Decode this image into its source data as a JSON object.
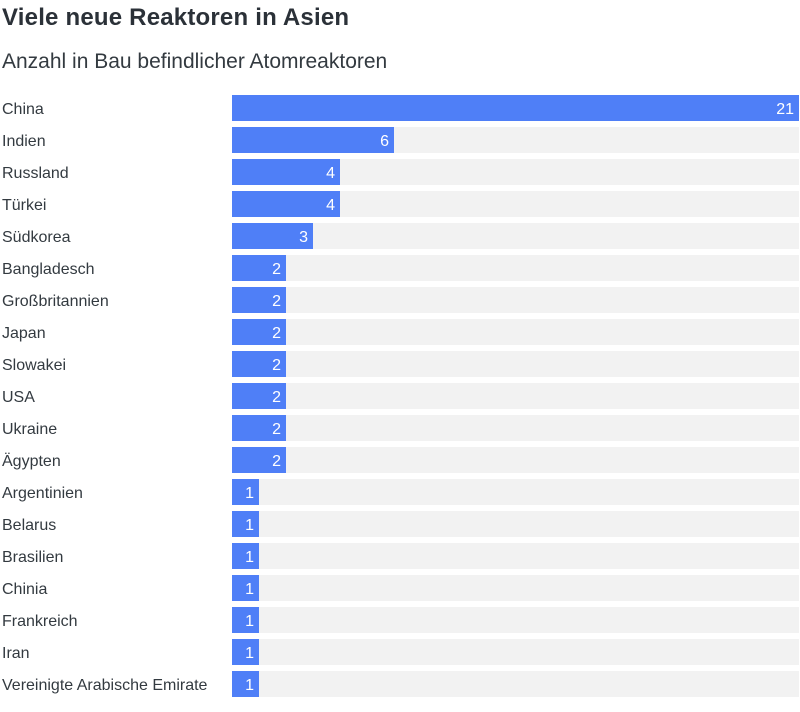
{
  "chart_data": {
    "type": "bar",
    "orientation": "horizontal",
    "title": "Viele neue Reaktoren in Asien",
    "subtitle": "Anzahl in Bau befindlicher Atomreaktoren",
    "categories": [
      "China",
      "Indien",
      "Russland",
      "Türkei",
      "Südkorea",
      "Bangladesch",
      "Großbritannien",
      "Japan",
      "Slowakei",
      "USA",
      "Ukraine",
      "Ägypten",
      "Argentinien",
      "Belarus",
      "Brasilien",
      "Chinia",
      "Frankreich",
      "Iran",
      "Vereinigte Arabische Emirate"
    ],
    "values": [
      21,
      6,
      4,
      4,
      3,
      2,
      2,
      2,
      2,
      2,
      2,
      2,
      1,
      1,
      1,
      1,
      1,
      1,
      1
    ],
    "xlim": [
      0,
      21
    ],
    "grid": false,
    "legend": "none",
    "colors": {
      "bar": "#4f7ff7",
      "track": "#f2f2f2",
      "value_label": "#ffffff",
      "category_label": "#333a40"
    }
  }
}
